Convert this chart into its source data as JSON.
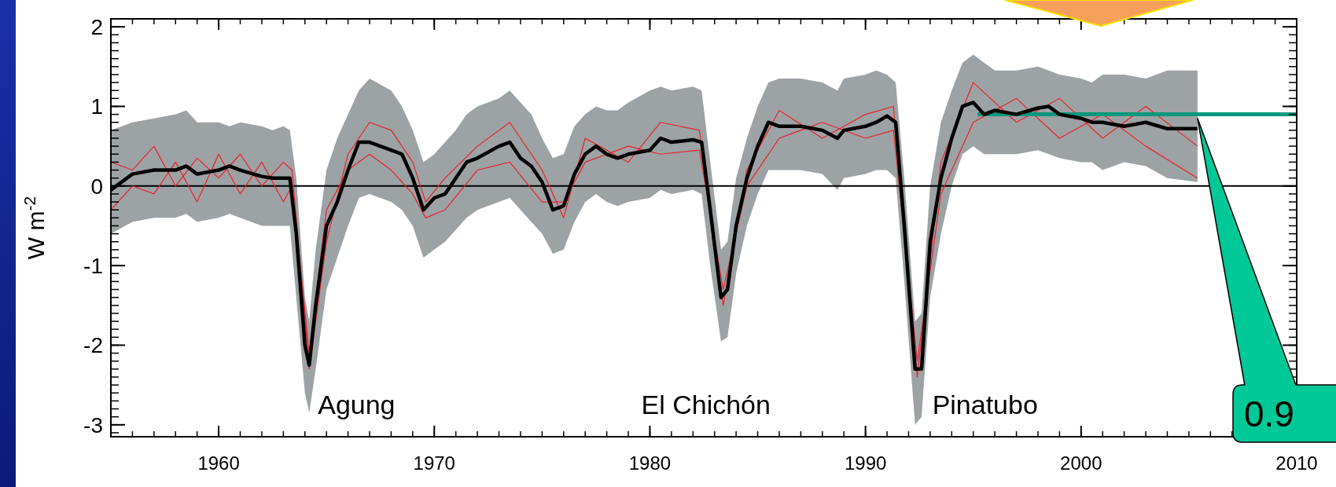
{
  "chart_data": {
    "type": "line",
    "ylabel": "W m$^{-2}$",
    "xlim": [
      1955,
      2010
    ],
    "xticks": [
      1960,
      1970,
      1980,
      1990,
      2000,
      2010
    ],
    "ylim": [
      -3.15,
      2.1
    ],
    "yticks": [
      -3,
      -2,
      -1,
      0,
      1,
      2
    ],
    "grid": false,
    "marker": "none",
    "line_style": "solid",
    "ref_lines": [
      {
        "axis": "y",
        "value": 0,
        "color": "#000000"
      }
    ],
    "annotations": [
      "Agung",
      "El Chichón",
      "Pinatubo",
      "0.9"
    ],
    "series": [
      {
        "color": "#000000",
        "x": [
          1955,
          1956,
          1957,
          1958,
          1958.5,
          1959,
          1960,
          1960.5,
          1961,
          1962,
          1962.5,
          1963,
          1963.3,
          1963.6,
          1964,
          1964.2,
          1964.5,
          1965,
          1965.5,
          1966,
          1966.5,
          1967,
          1968,
          1968.5,
          1969,
          1969.5,
          1970,
          1970.5,
          1971,
          1971.5,
          1972,
          1973,
          1973.5,
          1974,
          1974.5,
          1975,
          1975.5,
          1976,
          1976.5,
          1977,
          1977.5,
          1978,
          1978.5,
          1979,
          1980,
          1980.5,
          1981,
          1982,
          1982.4,
          1982.8,
          1983.3,
          1983.6,
          1984,
          1984.5,
          1985,
          1985.5,
          1986,
          1987,
          1988,
          1988.7,
          1989,
          1990,
          1990.5,
          1991,
          1991.4,
          1991.8,
          1992.3,
          1992.6,
          1993,
          1993.5,
          1994,
          1994.5,
          1995,
          1995.5,
          1996,
          1997,
          1998,
          1998.5,
          1999,
          2000,
          2000.5,
          2001,
          2002,
          2003,
          2004,
          2005.4
        ],
        "lower": [
          -0.6,
          -0.45,
          -0.4,
          -0.4,
          -0.35,
          -0.45,
          -0.4,
          -0.35,
          -0.4,
          -0.5,
          -0.5,
          -0.5,
          -0.5,
          -1.4,
          -2.6,
          -2.85,
          -2.3,
          -1.3,
          -0.9,
          -0.5,
          -0.15,
          -0.1,
          -0.2,
          -0.3,
          -0.5,
          -0.9,
          -0.8,
          -0.7,
          -0.55,
          -0.4,
          -0.3,
          -0.2,
          -0.15,
          -0.3,
          -0.45,
          -0.6,
          -0.85,
          -0.8,
          -0.45,
          -0.2,
          -0.1,
          -0.2,
          -0.25,
          -0.2,
          -0.15,
          -0.05,
          -0.1,
          -0.05,
          -0.1,
          -1.0,
          -1.95,
          -1.9,
          -1.1,
          -0.5,
          -0.1,
          0.2,
          0.2,
          0.2,
          0.15,
          -0.05,
          0.1,
          0.15,
          0.2,
          0.2,
          0.1,
          -1.2,
          -3.0,
          -2.9,
          -1.4,
          -0.6,
          0.0,
          0.4,
          0.5,
          0.4,
          0.4,
          0.4,
          0.45,
          0.4,
          0.35,
          0.3,
          0.3,
          0.2,
          0.3,
          0.25,
          0.1,
          0.05
        ],
        "upper": [
          0.7,
          0.8,
          0.85,
          0.9,
          0.95,
          0.8,
          0.8,
          0.75,
          0.8,
          0.75,
          0.7,
          0.75,
          0.7,
          0.1,
          -1.4,
          -1.7,
          -0.8,
          0.2,
          0.6,
          0.9,
          1.2,
          1.35,
          1.2,
          1.0,
          0.7,
          0.3,
          0.4,
          0.55,
          0.7,
          0.9,
          1.0,
          1.1,
          1.2,
          1.05,
          0.9,
          0.6,
          0.35,
          0.4,
          0.75,
          0.9,
          1.0,
          0.95,
          0.95,
          1.05,
          1.2,
          1.25,
          1.2,
          1.25,
          1.2,
          0.3,
          -0.8,
          -0.7,
          0.1,
          0.6,
          1.0,
          1.3,
          1.35,
          1.35,
          1.3,
          1.2,
          1.35,
          1.4,
          1.45,
          1.4,
          1.3,
          0.1,
          -1.7,
          -1.6,
          0.0,
          0.8,
          1.2,
          1.55,
          1.65,
          1.55,
          1.45,
          1.45,
          1.5,
          1.45,
          1.4,
          1.35,
          1.3,
          1.4,
          1.4,
          1.35,
          1.45,
          1.45
        ],
        "values": [
          -0.05,
          0.15,
          0.2,
          0.2,
          0.25,
          0.15,
          0.2,
          0.25,
          0.2,
          0.12,
          0.1,
          0.1,
          0.1,
          -0.6,
          -2.0,
          -2.25,
          -1.5,
          -0.5,
          -0.2,
          0.2,
          0.55,
          0.55,
          0.45,
          0.4,
          0.1,
          -0.3,
          -0.15,
          -0.1,
          0.1,
          0.3,
          0.35,
          0.5,
          0.55,
          0.35,
          0.25,
          0.05,
          -0.3,
          -0.25,
          0.15,
          0.4,
          0.5,
          0.4,
          0.35,
          0.4,
          0.45,
          0.6,
          0.55,
          0.58,
          0.55,
          -0.3,
          -1.4,
          -1.3,
          -0.5,
          0.1,
          0.5,
          0.8,
          0.75,
          0.75,
          0.7,
          0.6,
          0.7,
          0.75,
          0.8,
          0.88,
          0.8,
          -0.5,
          -2.3,
          -2.3,
          -0.7,
          0.1,
          0.6,
          1.0,
          1.05,
          0.9,
          0.95,
          0.9,
          0.98,
          1.0,
          0.9,
          0.85,
          0.8,
          0.8,
          0.75,
          0.8,
          0.72,
          0.72
        ]
      },
      {
        "type": "line",
        "color": "#e8222b",
        "x": [
          1955,
          1956,
          1957,
          1958,
          1959,
          1960,
          1961,
          1962,
          1963,
          1963.4,
          1964.2,
          1965,
          1966,
          1967,
          1968,
          1969,
          1969.6,
          1970.5,
          1972,
          1973.5,
          1975,
          1976,
          1977,
          1979,
          1980.5,
          1982.3,
          1983.4,
          1984.5,
          1986,
          1988,
          1990,
          1991.3,
          1992.4,
          1993.5,
          1995,
          1997,
          1999,
          2001,
          2003,
          2005.4
        ],
        "values": [
          0.3,
          0.2,
          0.5,
          0.0,
          0.35,
          0.1,
          0.4,
          0.0,
          0.3,
          0.2,
          -2.3,
          -0.7,
          0.4,
          0.8,
          0.7,
          0.3,
          -0.2,
          0.1,
          0.5,
          0.8,
          0.2,
          -0.4,
          0.6,
          0.3,
          0.8,
          0.7,
          -1.5,
          0.2,
          0.95,
          0.6,
          0.9,
          1.0,
          -2.4,
          0.3,
          1.3,
          0.8,
          1.1,
          0.6,
          1.0,
          0.5
        ]
      },
      {
        "type": "line",
        "color": "#e8222b",
        "x": [
          1955,
          1956,
          1957,
          1958,
          1959,
          1960,
          1961,
          1962,
          1963,
          1963.4,
          1964.2,
          1965,
          1966,
          1967,
          1968,
          1969,
          1969.6,
          1970.5,
          1972,
          1973.5,
          1975,
          1976,
          1977,
          1979,
          1980.5,
          1982.3,
          1983.4,
          1984.5,
          1986,
          1988,
          1990,
          1991.3,
          1992.4,
          1993.5,
          1995,
          1997,
          1999,
          2001,
          2003,
          2005.4
        ],
        "values": [
          -0.3,
          0.0,
          -0.1,
          0.3,
          -0.2,
          0.4,
          -0.1,
          0.3,
          -0.2,
          0.0,
          -2.1,
          -0.3,
          0.2,
          0.4,
          0.2,
          -0.1,
          -0.4,
          -0.3,
          0.2,
          0.3,
          -0.2,
          -0.2,
          0.3,
          0.5,
          0.4,
          0.45,
          -1.3,
          0.0,
          0.6,
          0.8,
          0.6,
          0.7,
          -2.2,
          -0.1,
          0.8,
          1.1,
          0.6,
          0.9,
          0.5,
          0.1
        ]
      },
      {
        "color": "#00987a",
        "x": [
          1995.2,
          2010
        ],
        "values": [
          0.9,
          0.9
        ]
      }
    ]
  }
}
